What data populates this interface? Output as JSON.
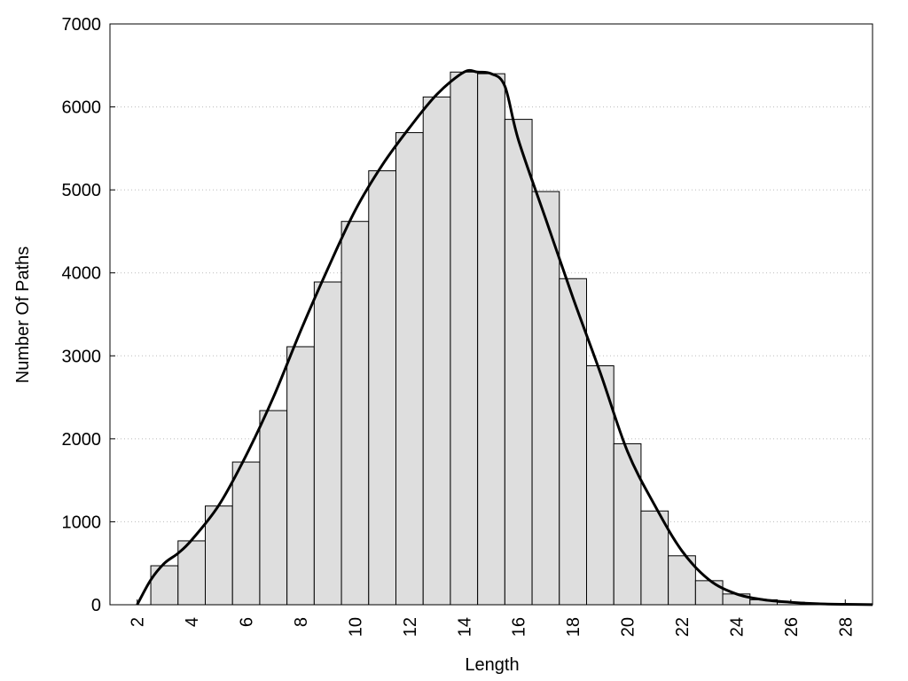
{
  "chart_data": {
    "type": "histogram",
    "xlabel": "Length",
    "ylabel": "Number Of Paths",
    "bins": [
      2.5,
      3.5,
      4.5,
      5.5,
      6.5,
      7.5,
      8.5,
      9.5,
      10.5,
      11.5,
      12.5,
      13.5,
      14.5,
      15.5,
      16.5,
      17.5,
      18.5,
      19.5,
      20.5,
      21.5,
      22.5,
      23.5,
      24.5,
      25.5,
      26.5,
      27.5,
      28.5
    ],
    "values": [
      470,
      770,
      1190,
      1720,
      2340,
      3110,
      3890,
      4620,
      5230,
      5690,
      6120,
      6420,
      6400,
      5850,
      4980,
      3930,
      2880,
      1940,
      1130,
      590,
      290,
      130,
      60,
      30,
      15,
      8
    ],
    "color": "#dedede",
    "curve": {
      "x": [
        2,
        2.5,
        3,
        3.5,
        4,
        5,
        6,
        7,
        8,
        9,
        10,
        11,
        12,
        13,
        14,
        14.5,
        15,
        15.5,
        16,
        17,
        18,
        19,
        20,
        21,
        22,
        23,
        24,
        25,
        26,
        27,
        28,
        29
      ],
      "values": [
        0,
        300,
        500,
        620,
        780,
        1200,
        1800,
        2500,
        3300,
        4050,
        4750,
        5300,
        5750,
        6150,
        6420,
        6420,
        6400,
        6250,
        5600,
        4650,
        3700,
        2800,
        1850,
        1200,
        650,
        300,
        130,
        60,
        30,
        12,
        5,
        2
      ],
      "color": "#000000"
    },
    "xlim": [
      1,
      29
    ],
    "ylim": [
      0,
      7000
    ],
    "xticks": [
      2,
      4,
      6,
      8,
      10,
      12,
      14,
      16,
      18,
      20,
      22,
      24,
      26,
      28
    ],
    "yticks": [
      0,
      1000,
      2000,
      3000,
      4000,
      5000,
      6000,
      7000
    ],
    "grid": true
  }
}
